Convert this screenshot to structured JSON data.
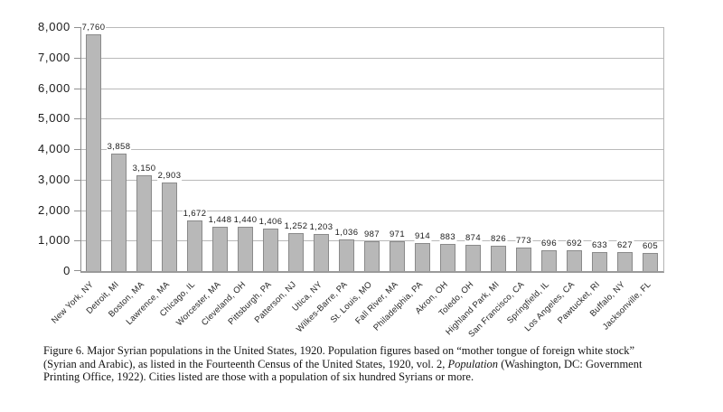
{
  "figure": {
    "caption": {
      "line1": "Figure 6. Major Syrian populations in the United States, 1920. Population figures based on “mother tongue of foreign white stock”",
      "line2_pre": "(Syrian and Arabic), as listed in the Fourteenth Census of the United States, 1920, vol. 2, ",
      "line2_italic": "Population",
      "line2_post": " (Washington, DC: Government",
      "line3": "Printing Office, 1922). Cities listed are those with a population of six hundred Syrians or more."
    }
  },
  "chart_data": {
    "type": "bar",
    "title": "",
    "xlabel": "",
    "ylabel": "",
    "legend": "none",
    "grid": "horizontal",
    "ylim": [
      0,
      8000
    ],
    "ytick_step": 1000,
    "ytick_labels": [
      "0",
      "1,000",
      "2,000",
      "3,000",
      "4,000",
      "5,000",
      "6,000",
      "7,000",
      "8,000"
    ],
    "categories": [
      "New York, NY",
      "Detroit, MI",
      "Boston, MA",
      "Lawrence, MA",
      "Chicago, IL",
      "Worcester, MA",
      "Cleveland, OH",
      "Pittsburgh, PA",
      "Patterson, NJ",
      "Utica, NY",
      "Wilkes-Barre, PA",
      "St. Louis, MO",
      "Fall River, MA",
      "Philadelphia, PA",
      "Akron, OH",
      "Toledo, OH",
      "Highland Park, MI",
      "San Francisco, CA",
      "Springfield, IL",
      "Los Angeles, CA",
      "Pawtucket, RI",
      "Buffalo, NY",
      "Jacksonville, FL"
    ],
    "values": [
      7760,
      3858,
      3150,
      2903,
      1672,
      1448,
      1440,
      1406,
      1252,
      1203,
      1036,
      987,
      971,
      914,
      883,
      874,
      826,
      773,
      696,
      692,
      633,
      627,
      605
    ],
    "value_labels": [
      "7,760",
      "3,858",
      "3,150",
      "2,903",
      "1,672",
      "1,448",
      "1,440",
      "1,406",
      "1,252",
      "1,203",
      "1,036",
      "987",
      "971",
      "914",
      "883",
      "874",
      "826",
      "773",
      "696",
      "692",
      "633",
      "627",
      "605"
    ],
    "bar_fill": "#b8b8b8",
    "bar_border": "#8a8a8a",
    "gridline_color": "#b9b9b9",
    "axis_color": "#8f8f8f",
    "label_color": "#1a1a1a"
  }
}
